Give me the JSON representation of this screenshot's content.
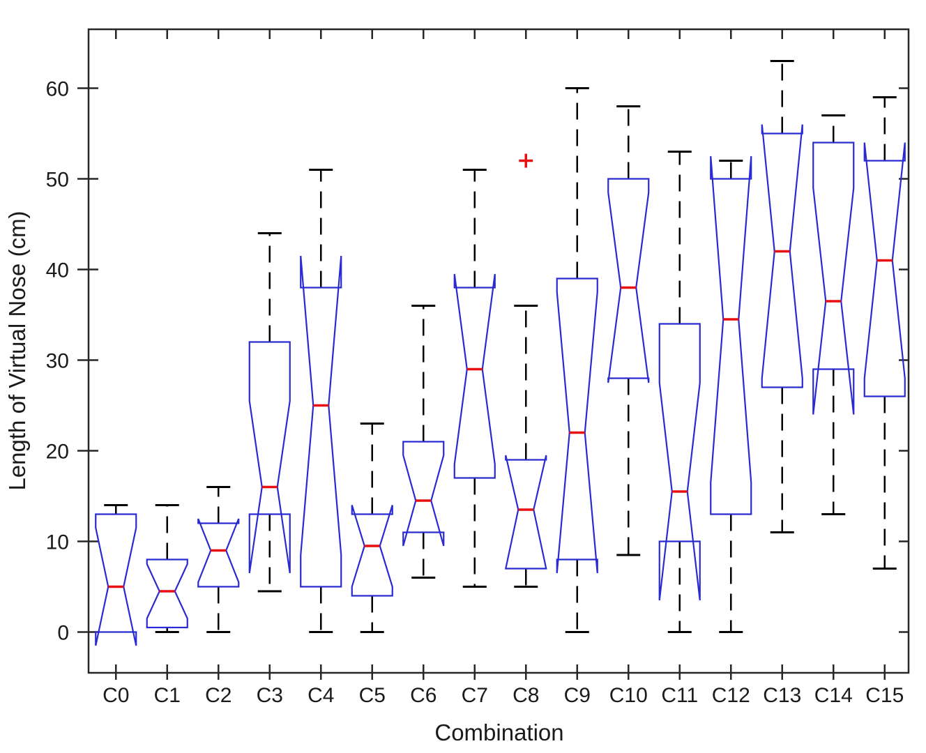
{
  "chart_data": {
    "type": "boxplot",
    "notched": true,
    "title": "",
    "xlabel": "Combination",
    "ylabel": "Length of Virtual Nose (cm)",
    "categories": [
      "C0",
      "C1",
      "C2",
      "C3",
      "C4",
      "C5",
      "C6",
      "C7",
      "C8",
      "C9",
      "C10",
      "C11",
      "C12",
      "C13",
      "C14",
      "C15"
    ],
    "y_ticks": [
      0,
      10,
      20,
      30,
      40,
      50,
      60
    ],
    "ylim": [
      -4.5,
      66.5
    ],
    "grid": false,
    "legend": "none",
    "colors": {
      "box": "#2a2ad2",
      "median": "#e81010",
      "whisker": "#000000",
      "outlier": "#e81010",
      "axis": "#262626"
    },
    "boxes": [
      {
        "label": "C0",
        "whisker_low": 0,
        "q1": 0,
        "median": 5,
        "q3": 13,
        "whisker_high": 14,
        "notch_low": -1.5,
        "notch_high": 11.5,
        "outliers": []
      },
      {
        "label": "C1",
        "whisker_low": 0,
        "q1": 0.5,
        "median": 4.5,
        "q3": 8,
        "whisker_high": 14,
        "notch_low": 1.5,
        "notch_high": 7.5,
        "outliers": []
      },
      {
        "label": "C2",
        "whisker_low": 0,
        "q1": 5,
        "median": 9,
        "q3": 12,
        "whisker_high": 16,
        "notch_low": 5.5,
        "notch_high": 12.5,
        "outliers": []
      },
      {
        "label": "C3",
        "whisker_low": 4.5,
        "q1": 13,
        "median": 16,
        "q3": 32,
        "whisker_high": 44,
        "notch_low": 6.5,
        "notch_high": 25.5,
        "outliers": []
      },
      {
        "label": "C4",
        "whisker_low": 0,
        "q1": 5,
        "median": 25,
        "q3": 38,
        "whisker_high": 51,
        "notch_low": 8.5,
        "notch_high": 41.5,
        "outliers": []
      },
      {
        "label": "C5",
        "whisker_low": 0,
        "q1": 4,
        "median": 9.5,
        "q3": 13,
        "whisker_high": 23,
        "notch_low": 5,
        "notch_high": 14,
        "outliers": []
      },
      {
        "label": "C6",
        "whisker_low": 6,
        "q1": 11,
        "median": 14.5,
        "q3": 21,
        "whisker_high": 36,
        "notch_low": 9.5,
        "notch_high": 19.5,
        "outliers": []
      },
      {
        "label": "C7",
        "whisker_low": 5,
        "q1": 17,
        "median": 29,
        "q3": 38,
        "whisker_high": 51,
        "notch_low": 18.5,
        "notch_high": 39.5,
        "outliers": []
      },
      {
        "label": "C8",
        "whisker_low": 5,
        "q1": 7,
        "median": 13.5,
        "q3": 19,
        "whisker_high": 36,
        "notch_low": 7,
        "notch_high": 19.5,
        "outliers": [
          52
        ]
      },
      {
        "label": "C9",
        "whisker_low": 0,
        "q1": 8,
        "median": 22,
        "q3": 39,
        "whisker_high": 60,
        "notch_low": 6.5,
        "notch_high": 37.5,
        "outliers": []
      },
      {
        "label": "C10",
        "whisker_low": 8.5,
        "q1": 28,
        "median": 38,
        "q3": 50,
        "whisker_high": 58,
        "notch_low": 27.5,
        "notch_high": 48.5,
        "outliers": []
      },
      {
        "label": "C11",
        "whisker_low": 0,
        "q1": 10,
        "median": 15.5,
        "q3": 34,
        "whisker_high": 53,
        "notch_low": 3.5,
        "notch_high": 27.5,
        "outliers": []
      },
      {
        "label": "C12",
        "whisker_low": 0,
        "q1": 13,
        "median": 34.5,
        "q3": 50,
        "whisker_high": 52,
        "notch_low": 16.5,
        "notch_high": 52.5,
        "outliers": []
      },
      {
        "label": "C13",
        "whisker_low": 11,
        "q1": 27,
        "median": 42,
        "q3": 55,
        "whisker_high": 63,
        "notch_low": 28,
        "notch_high": 56,
        "outliers": []
      },
      {
        "label": "C14",
        "whisker_low": 13,
        "q1": 29,
        "median": 36.5,
        "q3": 54,
        "whisker_high": 57,
        "notch_low": 24,
        "notch_high": 49,
        "outliers": []
      },
      {
        "label": "C15",
        "whisker_low": 7,
        "q1": 26,
        "median": 41,
        "q3": 52,
        "whisker_high": 59,
        "notch_low": 28,
        "notch_high": 54,
        "outliers": []
      }
    ]
  }
}
